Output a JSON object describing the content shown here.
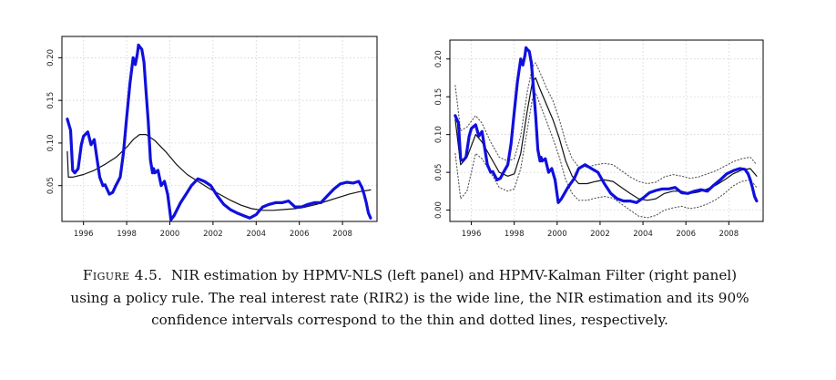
{
  "chart_data": [
    {
      "type": "line",
      "panel": "left",
      "xlim": [
        1995,
        2009.6
      ],
      "ylim": [
        0.008,
        0.225
      ],
      "xticks": [
        1996,
        1998,
        2000,
        2002,
        2004,
        2006,
        2008
      ],
      "xtick_labels": [
        "1996",
        "1998",
        "2000",
        "2002",
        "2004",
        "2006",
        "2008"
      ],
      "yticks": [
        0.05,
        0.1,
        0.15,
        0.2
      ],
      "ytick_labels": [
        "0.05",
        "0.10",
        "0.15",
        "0.20"
      ],
      "grid": true,
      "series": [
        {
          "role": "real interest rate (RIR2)",
          "style": "wide",
          "color": "#1010dd",
          "x": [
            1995.25,
            1995.4,
            1995.5,
            1995.6,
            1995.75,
            1995.9,
            1996.0,
            1996.2,
            1996.35,
            1996.5,
            1996.6,
            1996.75,
            1996.9,
            1997.0,
            1997.2,
            1997.35,
            1997.5,
            1997.7,
            1997.85,
            1998.0,
            1998.15,
            1998.3,
            1998.4,
            1998.5,
            1998.55,
            1998.6,
            1998.7,
            1998.8,
            1998.9,
            1999.0,
            1999.1,
            1999.2,
            1999.25,
            1999.3,
            1999.45,
            1999.6,
            1999.75,
            1999.9,
            2000.05,
            2000.2,
            2000.5,
            2000.8,
            2001.0,
            2001.3,
            2001.6,
            2001.9,
            2002.2,
            2002.5,
            2002.8,
            2003.1,
            2003.4,
            2003.7,
            2004.0,
            2004.3,
            2004.6,
            2004.9,
            2005.2,
            2005.5,
            2005.8,
            2006.1,
            2006.4,
            2006.7,
            2007.0,
            2007.3,
            2007.6,
            2007.9,
            2008.2,
            2008.5,
            2008.75,
            2008.9,
            2009.0,
            2009.1,
            2009.2,
            2009.3
          ],
          "y": [
            0.128,
            0.115,
            0.068,
            0.065,
            0.07,
            0.098,
            0.108,
            0.113,
            0.098,
            0.104,
            0.086,
            0.06,
            0.05,
            0.051,
            0.04,
            0.042,
            0.05,
            0.06,
            0.088,
            0.13,
            0.17,
            0.2,
            0.192,
            0.205,
            0.215,
            0.213,
            0.21,
            0.195,
            0.16,
            0.125,
            0.08,
            0.065,
            0.07,
            0.065,
            0.068,
            0.05,
            0.055,
            0.04,
            0.01,
            0.015,
            0.03,
            0.042,
            0.05,
            0.058,
            0.055,
            0.05,
            0.038,
            0.028,
            0.022,
            0.018,
            0.015,
            0.012,
            0.016,
            0.025,
            0.028,
            0.03,
            0.03,
            0.032,
            0.025,
            0.025,
            0.028,
            0.03,
            0.03,
            0.038,
            0.046,
            0.052,
            0.054,
            0.053,
            0.055,
            0.048,
            0.04,
            0.03,
            0.018,
            0.012
          ]
        },
        {
          "role": "NIR estimation",
          "style": "thin",
          "color": "#111111",
          "x": [
            1995.25,
            1995.3,
            1995.5,
            1996.0,
            1996.5,
            1997.0,
            1997.5,
            1998.0,
            1998.3,
            1998.6,
            1998.9,
            1999.3,
            1999.8,
            2000.3,
            2000.8,
            2001.3,
            2001.8,
            2002.3,
            2002.8,
            2003.3,
            2003.8,
            2004.3,
            2004.8,
            2005.3,
            2005.8,
            2006.3,
            2006.8,
            2007.3,
            2007.8,
            2008.3,
            2008.8,
            2009.3
          ],
          "y": [
            0.09,
            0.06,
            0.06,
            0.063,
            0.068,
            0.075,
            0.083,
            0.095,
            0.104,
            0.11,
            0.11,
            0.103,
            0.09,
            0.075,
            0.063,
            0.055,
            0.047,
            0.04,
            0.033,
            0.027,
            0.023,
            0.021,
            0.021,
            0.022,
            0.023,
            0.025,
            0.028,
            0.032,
            0.036,
            0.04,
            0.043,
            0.045
          ]
        }
      ]
    },
    {
      "type": "line",
      "panel": "right",
      "xlim": [
        1995,
        2009.6
      ],
      "ylim": [
        -0.015,
        0.225
      ],
      "xticks": [
        1996,
        1998,
        2000,
        2002,
        2004,
        2006,
        2008
      ],
      "xtick_labels": [
        "1996",
        "1998",
        "2000",
        "2002",
        "2004",
        "2006",
        "2008"
      ],
      "yticks": [
        0.0,
        0.05,
        0.1,
        0.15,
        0.2
      ],
      "ytick_labels": [
        "0.00",
        "0.05",
        "0.10",
        "0.15",
        "0.20"
      ],
      "grid": true,
      "series": [
        {
          "role": "real interest rate (RIR2)",
          "style": "wide",
          "color": "#1010dd",
          "x": [
            1995.25,
            1995.4,
            1995.5,
            1995.6,
            1995.75,
            1995.9,
            1996.0,
            1996.2,
            1996.35,
            1996.5,
            1996.6,
            1996.75,
            1996.9,
            1997.0,
            1997.2,
            1997.35,
            1997.5,
            1997.7,
            1997.85,
            1998.0,
            1998.15,
            1998.3,
            1998.4,
            1998.5,
            1998.55,
            1998.6,
            1998.7,
            1998.8,
            1998.9,
            1999.0,
            1999.1,
            1999.2,
            1999.25,
            1999.3,
            1999.45,
            1999.6,
            1999.75,
            1999.9,
            2000.05,
            2000.2,
            2000.5,
            2000.8,
            2001.0,
            2001.3,
            2001.6,
            2001.9,
            2002.2,
            2002.5,
            2002.8,
            2003.1,
            2003.4,
            2003.7,
            2004.0,
            2004.3,
            2004.6,
            2004.9,
            2005.2,
            2005.5,
            2005.8,
            2006.1,
            2006.4,
            2006.7,
            2007.0,
            2007.3,
            2007.6,
            2007.9,
            2008.2,
            2008.5,
            2008.75,
            2008.9,
            2009.0,
            2009.1,
            2009.2,
            2009.3
          ],
          "y": [
            0.125,
            0.115,
            0.068,
            0.065,
            0.07,
            0.098,
            0.108,
            0.113,
            0.098,
            0.104,
            0.086,
            0.06,
            0.05,
            0.051,
            0.04,
            0.042,
            0.05,
            0.06,
            0.088,
            0.13,
            0.17,
            0.2,
            0.192,
            0.205,
            0.215,
            0.213,
            0.21,
            0.195,
            0.16,
            0.125,
            0.08,
            0.065,
            0.07,
            0.065,
            0.068,
            0.05,
            0.055,
            0.04,
            0.01,
            0.015,
            0.03,
            0.042,
            0.055,
            0.06,
            0.055,
            0.05,
            0.035,
            0.022,
            0.015,
            0.012,
            0.012,
            0.01,
            0.016,
            0.023,
            0.026,
            0.028,
            0.028,
            0.03,
            0.023,
            0.022,
            0.025,
            0.027,
            0.025,
            0.033,
            0.04,
            0.048,
            0.052,
            0.055,
            0.054,
            0.048,
            0.04,
            0.03,
            0.018,
            0.012
          ]
        },
        {
          "role": "NIR estimation",
          "style": "thin",
          "color": "#111111",
          "x": [
            1995.25,
            1995.5,
            1995.8,
            1996.2,
            1996.5,
            1996.9,
            1997.3,
            1997.7,
            1998.0,
            1998.3,
            1998.6,
            1998.85,
            1999.0,
            1999.2,
            1999.5,
            1999.8,
            2000.1,
            2000.4,
            2000.7,
            2001.0,
            2001.4,
            2001.8,
            2002.2,
            2002.6,
            2003.0,
            2003.4,
            2003.8,
            2004.2,
            2004.6,
            2005.0,
            2005.4,
            2005.8,
            2006.2,
            2006.6,
            2007.0,
            2007.4,
            2007.8,
            2008.2,
            2008.6,
            2009.0,
            2009.3
          ],
          "y": [
            0.12,
            0.06,
            0.07,
            0.1,
            0.09,
            0.07,
            0.05,
            0.045,
            0.048,
            0.075,
            0.13,
            0.17,
            0.175,
            0.16,
            0.14,
            0.12,
            0.095,
            0.065,
            0.045,
            0.035,
            0.035,
            0.038,
            0.04,
            0.038,
            0.03,
            0.022,
            0.015,
            0.013,
            0.015,
            0.022,
            0.025,
            0.025,
            0.022,
            0.024,
            0.028,
            0.033,
            0.04,
            0.048,
            0.053,
            0.055,
            0.045
          ]
        },
        {
          "role": "90% confidence interval (upper)",
          "style": "dotted",
          "color": "#555555",
          "x": [
            1995.25,
            1995.5,
            1995.8,
            1996.2,
            1996.5,
            1996.9,
            1997.3,
            1997.7,
            1998.0,
            1998.3,
            1998.6,
            1998.85,
            1999.0,
            1999.2,
            1999.5,
            1999.8,
            2000.1,
            2000.4,
            2000.7,
            2001.0,
            2001.4,
            2001.8,
            2002.2,
            2002.6,
            2003.0,
            2003.4,
            2003.8,
            2004.2,
            2004.6,
            2005.0,
            2005.4,
            2005.8,
            2006.2,
            2006.6,
            2007.0,
            2007.4,
            2007.8,
            2008.2,
            2008.6,
            2009.0,
            2009.3
          ],
          "y": [
            0.165,
            0.105,
            0.11,
            0.125,
            0.115,
            0.09,
            0.07,
            0.065,
            0.068,
            0.098,
            0.155,
            0.19,
            0.195,
            0.182,
            0.162,
            0.145,
            0.12,
            0.09,
            0.068,
            0.057,
            0.057,
            0.06,
            0.062,
            0.06,
            0.052,
            0.044,
            0.038,
            0.035,
            0.037,
            0.044,
            0.047,
            0.045,
            0.042,
            0.044,
            0.048,
            0.052,
            0.058,
            0.064,
            0.068,
            0.07,
            0.06
          ]
        },
        {
          "role": "90% confidence interval (lower)",
          "style": "dotted",
          "color": "#555555",
          "x": [
            1995.25,
            1995.5,
            1995.8,
            1996.2,
            1996.5,
            1996.9,
            1997.3,
            1997.7,
            1998.0,
            1998.3,
            1998.6,
            1998.85,
            1999.0,
            1999.2,
            1999.5,
            1999.8,
            2000.1,
            2000.4,
            2000.7,
            2001.0,
            2001.4,
            2001.8,
            2002.2,
            2002.6,
            2003.0,
            2003.4,
            2003.8,
            2004.2,
            2004.6,
            2005.0,
            2005.4,
            2005.8,
            2006.2,
            2006.6,
            2007.0,
            2007.4,
            2007.8,
            2008.2,
            2008.6,
            2009.0,
            2009.3
          ],
          "y": [
            0.075,
            0.015,
            0.025,
            0.075,
            0.068,
            0.05,
            0.03,
            0.025,
            0.028,
            0.055,
            0.105,
            0.148,
            0.155,
            0.14,
            0.118,
            0.095,
            0.07,
            0.04,
            0.022,
            0.013,
            0.013,
            0.016,
            0.018,
            0.016,
            0.008,
            0.0,
            -0.008,
            -0.01,
            -0.007,
            0.0,
            0.003,
            0.005,
            0.002,
            0.004,
            0.008,
            0.014,
            0.022,
            0.032,
            0.038,
            0.04,
            0.03
          ]
        }
      ]
    }
  ],
  "caption": {
    "label": "Figure 4.5.",
    "text": "NIR estimation by HPMV-NLS (left panel) and HPMV-Kalman Filter (right panel) using a policy rule. The real interest rate (RIR2) is the wide line, the NIR estimation and its 90% confidence intervals correspond to the thin and dotted lines, respectively."
  }
}
